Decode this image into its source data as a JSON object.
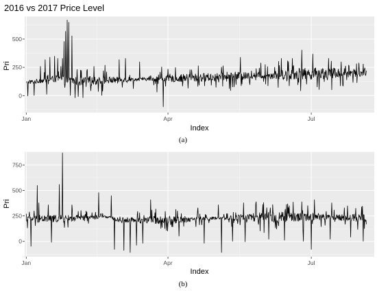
{
  "figure": {
    "title": "2016 vs 2017 Price Level",
    "captions": [
      "(a)",
      "(b)"
    ]
  },
  "colors": {
    "panel_background": "#ebebeb",
    "grid_major": "#ffffff",
    "line": "#000000",
    "tick_text": "#4d4d4d"
  },
  "chart_data": [
    {
      "type": "line",
      "title": "2016 vs 2017 Price Level",
      "xlabel": "Index",
      "ylabel": "Pri",
      "x_range": [
        "2016-12-31",
        "2017-08-10"
      ],
      "x_ticks": [
        {
          "date": "2017-01-01",
          "label": "Jan"
        },
        {
          "date": "2017-04-01",
          "label": "Apr"
        },
        {
          "date": "2017-07-01",
          "label": "Jul"
        }
      ],
      "ylim": [
        -150,
        700
      ],
      "y_ticks": [
        0,
        250,
        500
      ],
      "grid": true,
      "series": [
        {
          "style": "spiky",
          "anchors": [
            [
              "2017-01-01",
              115
            ],
            [
              "2017-01-20",
              150
            ],
            [
              "2017-02-05",
              125
            ],
            [
              "2017-03-01",
              140
            ],
            [
              "2017-04-01",
              150
            ],
            [
              "2017-05-01",
              165
            ],
            [
              "2017-06-01",
              180
            ],
            [
              "2017-07-01",
              195
            ],
            [
              "2017-08-05",
              205
            ]
          ],
          "spikes": [
            [
              "2017-01-04",
              135
            ],
            [
              "2017-01-10",
              260
            ],
            [
              "2017-01-13",
              320
            ],
            [
              "2017-01-16",
              340
            ],
            [
              "2017-01-19",
              350
            ],
            [
              "2017-01-21",
              330
            ],
            [
              "2017-01-23",
              260
            ],
            [
              "2017-01-24",
              330
            ],
            [
              "2017-01-25",
              480
            ],
            [
              "2017-01-26",
              570
            ],
            [
              "2017-01-27",
              670
            ],
            [
              "2017-01-28",
              650
            ],
            [
              "2017-01-29",
              430
            ],
            [
              "2017-01-30",
              530
            ],
            [
              "2017-02-13",
              260
            ],
            [
              "2017-02-20",
              270
            ],
            [
              "2017-03-01",
              320
            ],
            [
              "2017-03-05",
              330
            ],
            [
              "2017-03-14",
              300
            ],
            [
              "2017-03-28",
              255
            ],
            [
              "2017-04-15",
              230
            ],
            [
              "2017-05-06",
              265
            ],
            [
              "2017-05-17",
              340
            ],
            [
              "2017-05-30",
              290
            ],
            [
              "2017-06-12",
              330
            ],
            [
              "2017-06-19",
              330
            ],
            [
              "2017-06-25",
              405
            ],
            [
              "2017-07-02",
              370
            ],
            [
              "2017-07-12",
              330
            ],
            [
              "2017-07-20",
              300
            ]
          ],
          "dips": [
            [
              "2017-01-02",
              -5
            ],
            [
              "2017-01-06",
              0
            ],
            [
              "2017-01-14",
              10
            ],
            [
              "2017-01-29",
              0
            ],
            [
              "2017-02-01",
              -20
            ],
            [
              "2017-02-03",
              -10
            ],
            [
              "2017-02-06",
              -20
            ],
            [
              "2017-02-18",
              0
            ],
            [
              "2017-03-10",
              60
            ],
            [
              "2017-03-25",
              30
            ],
            [
              "2017-03-29",
              -100
            ],
            [
              "2017-04-20",
              80
            ],
            [
              "2017-05-10",
              60
            ],
            [
              "2017-06-10",
              70
            ],
            [
              "2017-06-28",
              100
            ],
            [
              "2017-07-14",
              50
            ]
          ]
        }
      ]
    },
    {
      "type": "line",
      "title": "",
      "xlabel": "Index",
      "ylabel": "Pri",
      "x_range": [
        "2016-12-31",
        "2017-08-10"
      ],
      "x_ticks": [
        {
          "date": "2017-01-01",
          "label": "Jan"
        },
        {
          "date": "2017-04-01",
          "label": "Apr"
        },
        {
          "date": "2017-07-01",
          "label": "Jul"
        }
      ],
      "ylim": [
        -150,
        880
      ],
      "y_ticks": [
        0,
        250,
        500,
        750
      ],
      "grid": true,
      "series": [
        {
          "style": "spiky",
          "anchors": [
            [
              "2017-01-01",
              220
            ],
            [
              "2017-02-01",
              225
            ],
            [
              "2017-02-20",
              245
            ],
            [
              "2017-03-01",
              210
            ],
            [
              "2017-04-01",
              210
            ],
            [
              "2017-05-01",
              225
            ],
            [
              "2017-06-01",
              235
            ],
            [
              "2017-07-01",
              240
            ],
            [
              "2017-08-05",
              230
            ]
          ],
          "spikes": [
            [
              "2017-01-03",
              290
            ],
            [
              "2017-01-06",
              300
            ],
            [
              "2017-01-08",
              550
            ],
            [
              "2017-01-09",
              380
            ],
            [
              "2017-01-15",
              360
            ],
            [
              "2017-01-22",
              560
            ],
            [
              "2017-01-24",
              870
            ],
            [
              "2017-01-30",
              360
            ],
            [
              "2017-02-08",
              300
            ],
            [
              "2017-02-16",
              480
            ],
            [
              "2017-02-24",
              450
            ],
            [
              "2017-03-12",
              340
            ],
            [
              "2017-03-21",
              410
            ],
            [
              "2017-04-07",
              300
            ],
            [
              "2017-04-20",
              330
            ],
            [
              "2017-05-03",
              360
            ],
            [
              "2017-05-19",
              380
            ],
            [
              "2017-05-27",
              390
            ],
            [
              "2017-06-05",
              330
            ],
            [
              "2017-06-16",
              370
            ],
            [
              "2017-06-25",
              390
            ],
            [
              "2017-07-03",
              410
            ],
            [
              "2017-07-14",
              380
            ],
            [
              "2017-07-24",
              350
            ],
            [
              "2017-08-02",
              340
            ]
          ],
          "dips": [
            [
              "2017-01-04",
              -50
            ],
            [
              "2017-01-17",
              -10
            ],
            [
              "2017-02-26",
              -80
            ],
            [
              "2017-03-04",
              -90
            ],
            [
              "2017-03-08",
              -110
            ],
            [
              "2017-03-12",
              -40
            ],
            [
              "2017-03-16",
              -20
            ],
            [
              "2017-04-08",
              50
            ],
            [
              "2017-04-24",
              -20
            ],
            [
              "2017-05-05",
              -110
            ],
            [
              "2017-05-12",
              0
            ],
            [
              "2017-05-20",
              -5
            ],
            [
              "2017-06-04",
              20
            ],
            [
              "2017-06-14",
              10
            ],
            [
              "2017-06-26",
              0
            ],
            [
              "2017-07-01",
              -80
            ],
            [
              "2017-07-13",
              20
            ],
            [
              "2017-07-26",
              40
            ],
            [
              "2017-08-03",
              0
            ]
          ]
        }
      ]
    }
  ]
}
